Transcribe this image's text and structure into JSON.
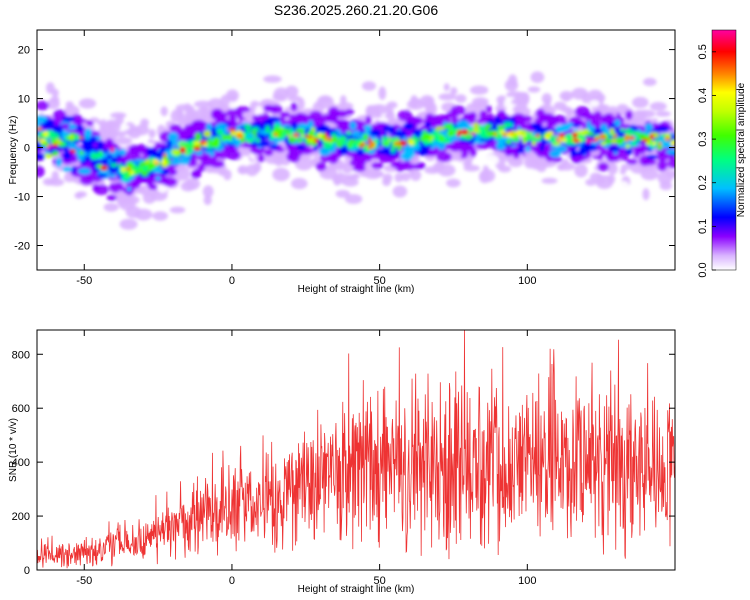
{
  "title": "S236.2025.260.21.20.G06",
  "chart_data": [
    {
      "type": "heatmap",
      "xlabel": "Height of straight line (km)",
      "ylabel": "Frequency (Hz)",
      "xlim": [
        -66,
        150
      ],
      "ylim": [
        -25,
        24
      ],
      "xticks": [
        -50,
        0,
        50,
        100
      ],
      "yticks": [
        -20,
        -10,
        0,
        10,
        20
      ],
      "ridge": {
        "description_points_x": [
          -65,
          -55,
          -45,
          -35,
          -25,
          -15,
          -5,
          5,
          15,
          30,
          45,
          60,
          75,
          90,
          105,
          120,
          135,
          150
        ],
        "center_freq_hz": [
          2,
          1,
          -2,
          -5,
          -3,
          0,
          2,
          3,
          3,
          2,
          1,
          1,
          3,
          3,
          2,
          2,
          2,
          1
        ]
      },
      "colorbar": {
        "label": "Normalized spectral amplitude",
        "range": [
          0.0,
          0.55
        ],
        "ticks": [
          "0.0",
          "0.1",
          "0.2",
          "0.3",
          "0.4",
          "0.5"
        ],
        "colors": [
          "#ffffff",
          "#d9b3ff",
          "#8a00ff",
          "#0000ff",
          "#00c0ff",
          "#00ff80",
          "#40ff00",
          "#c0ff00",
          "#ffff00",
          "#ff8000",
          "#ff0000",
          "#ff00a0"
        ]
      }
    },
    {
      "type": "line",
      "xlabel": "Height of straight line (km)",
      "ylabel": "SNR (10 * v/v)",
      "xlim": [
        -66,
        150
      ],
      "ylim": [
        0,
        890
      ],
      "xticks": [
        -50,
        0,
        50,
        100
      ],
      "yticks": [
        0,
        200,
        400,
        600,
        800
      ],
      "color": "#ee3333",
      "envelope": {
        "x": [
          -66,
          -55,
          -45,
          -40,
          -35,
          -30,
          -20,
          -10,
          0,
          10,
          20,
          30,
          40,
          50,
          60,
          70,
          80,
          90,
          100,
          110,
          120,
          130,
          140,
          150
        ],
        "mean": [
          45,
          60,
          70,
          110,
          90,
          100,
          150,
          190,
          230,
          250,
          290,
          320,
          340,
          360,
          380,
          400,
          390,
          400,
          410,
          400,
          400,
          380,
          400,
          380
        ],
        "spread": [
          30,
          40,
          45,
          70,
          55,
          70,
          90,
          110,
          130,
          150,
          190,
          220,
          230,
          240,
          250,
          260,
          250,
          250,
          250,
          250,
          240,
          250,
          240,
          240
        ]
      }
    }
  ]
}
